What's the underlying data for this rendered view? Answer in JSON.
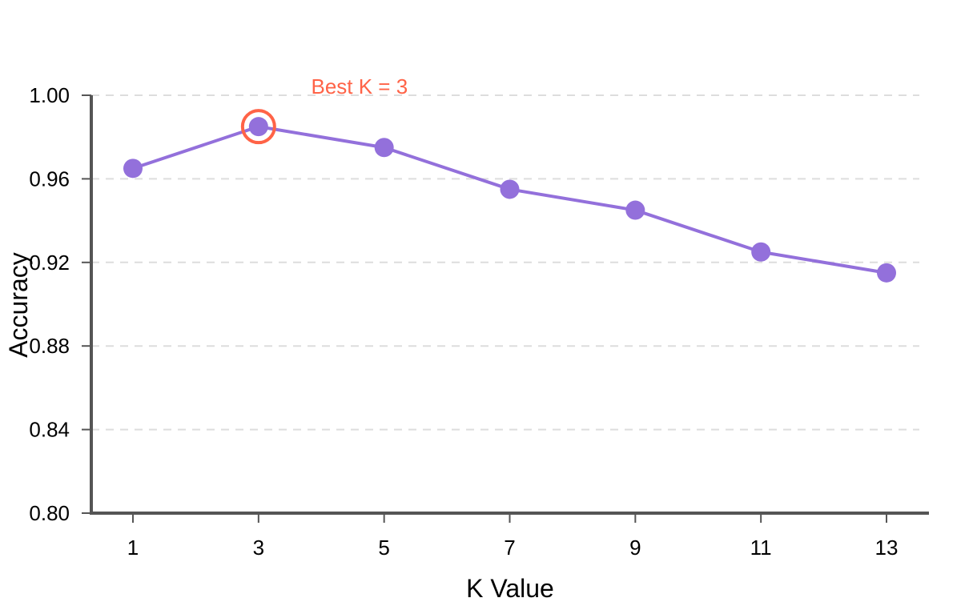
{
  "chart_data": {
    "type": "line",
    "title": "",
    "xlabel": "K Value",
    "ylabel": "Accuracy",
    "x": [
      1,
      3,
      5,
      7,
      9,
      11,
      13
    ],
    "x_tick_labels": [
      "1",
      "3",
      "5",
      "7",
      "9",
      "11",
      "13"
    ],
    "y_tick_labels": [
      "1.00",
      "0.96",
      "0.92",
      "0.88",
      "0.84",
      "0.80"
    ],
    "ylim": [
      0.8,
      1.0
    ],
    "xlim": [
      0,
      14.3
    ],
    "grid": "horizontal dashed",
    "series": [
      {
        "values": [
          0.965,
          0.985,
          0.975,
          0.955,
          0.945,
          0.925,
          0.915
        ],
        "color": "#9370db"
      }
    ],
    "annotation": {
      "text": "Best K = 3",
      "x": 3,
      "y": 0.985,
      "color": "#ff6347"
    },
    "colors": {
      "axis": "#555555",
      "grid": "#dddddd",
      "line": "#9370db",
      "highlight": "#ff6347"
    }
  }
}
